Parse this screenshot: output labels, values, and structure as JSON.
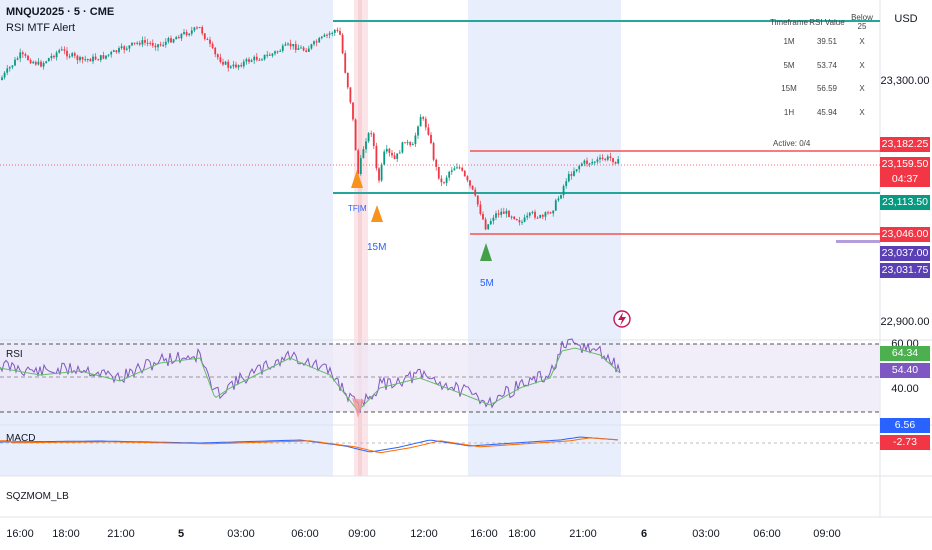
{
  "header": {
    "symbol": "MNQU2025 · 5 · CME",
    "indicator": "RSI MTF Alert",
    "currency": "USD"
  },
  "rsi_table": {
    "headers": [
      "Timeframe",
      "RSI Value",
      "Below 25"
    ],
    "rows": [
      {
        "tf": "1M",
        "value": "39.51",
        "below": "X"
      },
      {
        "tf": "5M",
        "value": "53.74",
        "below": "X"
      },
      {
        "tf": "15M",
        "value": "56.59",
        "below": "X"
      },
      {
        "tf": "1H",
        "value": "45.94",
        "below": "X"
      }
    ],
    "active": "Active: 0/4"
  },
  "signal_labels": {
    "small": "TF|M",
    "tf15": "15M",
    "tf5": "5M"
  },
  "price_axis": {
    "labels": [
      "23,300.00",
      "22,900.00"
    ],
    "tags": [
      {
        "text": "23,182.25",
        "color": "#f23645"
      },
      {
        "text": "23,159.50",
        "color": "#f23645"
      },
      {
        "text": "04:37",
        "color": "#f23645"
      },
      {
        "text": "23,113.50",
        "color": "#089981"
      },
      {
        "text": "23,046.00",
        "color": "#f23645"
      },
      {
        "text": "23,037.00",
        "color": "#5b3fb5"
      },
      {
        "text": "23,031.75",
        "color": "#5b3fb5"
      }
    ]
  },
  "rsi_pane": {
    "label": "RSI",
    "axis_labels": [
      "60.00",
      "40.00"
    ],
    "tags": [
      {
        "text": "64.34",
        "color": "#4caf50"
      },
      {
        "text": "54.40",
        "color": "#7e57c2"
      }
    ]
  },
  "macd_pane": {
    "label": "MACD",
    "tags": [
      {
        "text": "6.56",
        "color": "#2962ff"
      },
      {
        "text": "-2.73",
        "color": "#f23645"
      }
    ]
  },
  "sqz_pane": {
    "label": "SQZMOM_LB"
  },
  "time_axis": [
    {
      "text": "16:00",
      "bold": false
    },
    {
      "text": "18:00",
      "bold": false
    },
    {
      "text": "21:00",
      "bold": false
    },
    {
      "text": "5",
      "bold": true
    },
    {
      "text": "03:00",
      "bold": false
    },
    {
      "text": "06:00",
      "bold": false
    },
    {
      "text": "09:00",
      "bold": false
    },
    {
      "text": "12:00",
      "bold": false
    },
    {
      "text": "16:00",
      "bold": false
    },
    {
      "text": "18:00",
      "bold": false
    },
    {
      "text": "21:00",
      "bold": false
    },
    {
      "text": "6",
      "bold": true
    },
    {
      "text": "03:00",
      "bold": false
    },
    {
      "text": "06:00",
      "bold": false
    },
    {
      "text": "09:00",
      "bold": false
    }
  ],
  "colors": {
    "session_shade": "#e8edfc",
    "level_green": "#26a69a",
    "level_red": "#ef5350",
    "rsi_line": "#7e57c2",
    "rsi_ma": "#4caf50",
    "macd_line": "#2962ff",
    "signal_line": "#ff6d00"
  }
}
